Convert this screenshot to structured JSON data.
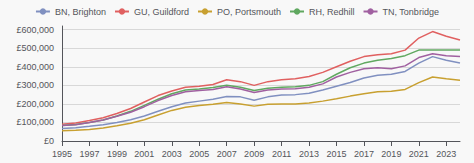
{
  "chart_data": {
    "type": "line",
    "x": [
      1995,
      1996,
      1997,
      1998,
      1999,
      2000,
      2001,
      2002,
      2003,
      2004,
      2005,
      2006,
      2007,
      2008,
      2009,
      2010,
      2011,
      2012,
      2013,
      2014,
      2015,
      2016,
      2017,
      2018,
      2019,
      2020,
      2021,
      2022,
      2023,
      2024
    ],
    "series": [
      {
        "name": "BN, Brighton",
        "color": "#8090c0",
        "values": [
          68000,
          72000,
          79000,
          88000,
          100000,
          115000,
          135000,
          160000,
          185000,
          205000,
          215000,
          225000,
          240000,
          238000,
          220000,
          238000,
          248000,
          250000,
          258000,
          275000,
          295000,
          315000,
          340000,
          355000,
          360000,
          375000,
          420000,
          455000,
          435000,
          420000
        ]
      },
      {
        "name": "GU, Guildford",
        "color": "#e06060",
        "values": [
          90000,
          97000,
          110000,
          125000,
          148000,
          175000,
          210000,
          245000,
          270000,
          290000,
          295000,
          305000,
          330000,
          320000,
          300000,
          320000,
          330000,
          335000,
          348000,
          370000,
          400000,
          430000,
          455000,
          465000,
          470000,
          490000,
          555000,
          590000,
          565000,
          545000
        ]
      },
      {
        "name": "PO, Portsmouth",
        "color": "#c8a030",
        "values": [
          55000,
          58000,
          62000,
          70000,
          82000,
          96000,
          115000,
          140000,
          165000,
          182000,
          192000,
          198000,
          208000,
          200000,
          188000,
          198000,
          200000,
          200000,
          205000,
          215000,
          228000,
          242000,
          255000,
          265000,
          268000,
          278000,
          315000,
          345000,
          335000,
          328000
        ]
      },
      {
        "name": "RH, Redhill",
        "color": "#60a860",
        "values": [
          83000,
          89000,
          100000,
          113000,
          135000,
          160000,
          192000,
          225000,
          255000,
          275000,
          280000,
          288000,
          300000,
          290000,
          272000,
          285000,
          290000,
          292000,
          300000,
          320000,
          360000,
          395000,
          420000,
          435000,
          445000,
          460000,
          490000,
          490000,
          490000,
          490000
        ]
      },
      {
        "name": "TN, Tonbridge",
        "color": "#a060a0",
        "values": [
          83000,
          88000,
          100000,
          113000,
          133000,
          155000,
          185000,
          218000,
          245000,
          265000,
          272000,
          278000,
          292000,
          280000,
          262000,
          275000,
          280000,
          282000,
          290000,
          308000,
          345000,
          370000,
          390000,
          395000,
          390000,
          405000,
          450000,
          470000,
          460000,
          455000
        ]
      }
    ],
    "xlim": [
      1995,
      2024
    ],
    "xticks": [
      1995,
      1997,
      1999,
      2001,
      2003,
      2005,
      2007,
      2009,
      2011,
      2013,
      2015,
      2017,
      2019,
      2021,
      2023
    ],
    "ylim": [
      0,
      620000
    ],
    "yticks": [
      {
        "value": 0,
        "label": "£0"
      },
      {
        "value": 100000,
        "label": "£100,000"
      },
      {
        "value": 200000,
        "label": "£200,000"
      },
      {
        "value": 300000,
        "label": "£300,000"
      },
      {
        "value": 400000,
        "label": "£400,000"
      },
      {
        "value": 500000,
        "label": "£500,000"
      },
      {
        "value": 600000,
        "label": "£600,000"
      }
    ],
    "grid": true,
    "legend": "top"
  }
}
